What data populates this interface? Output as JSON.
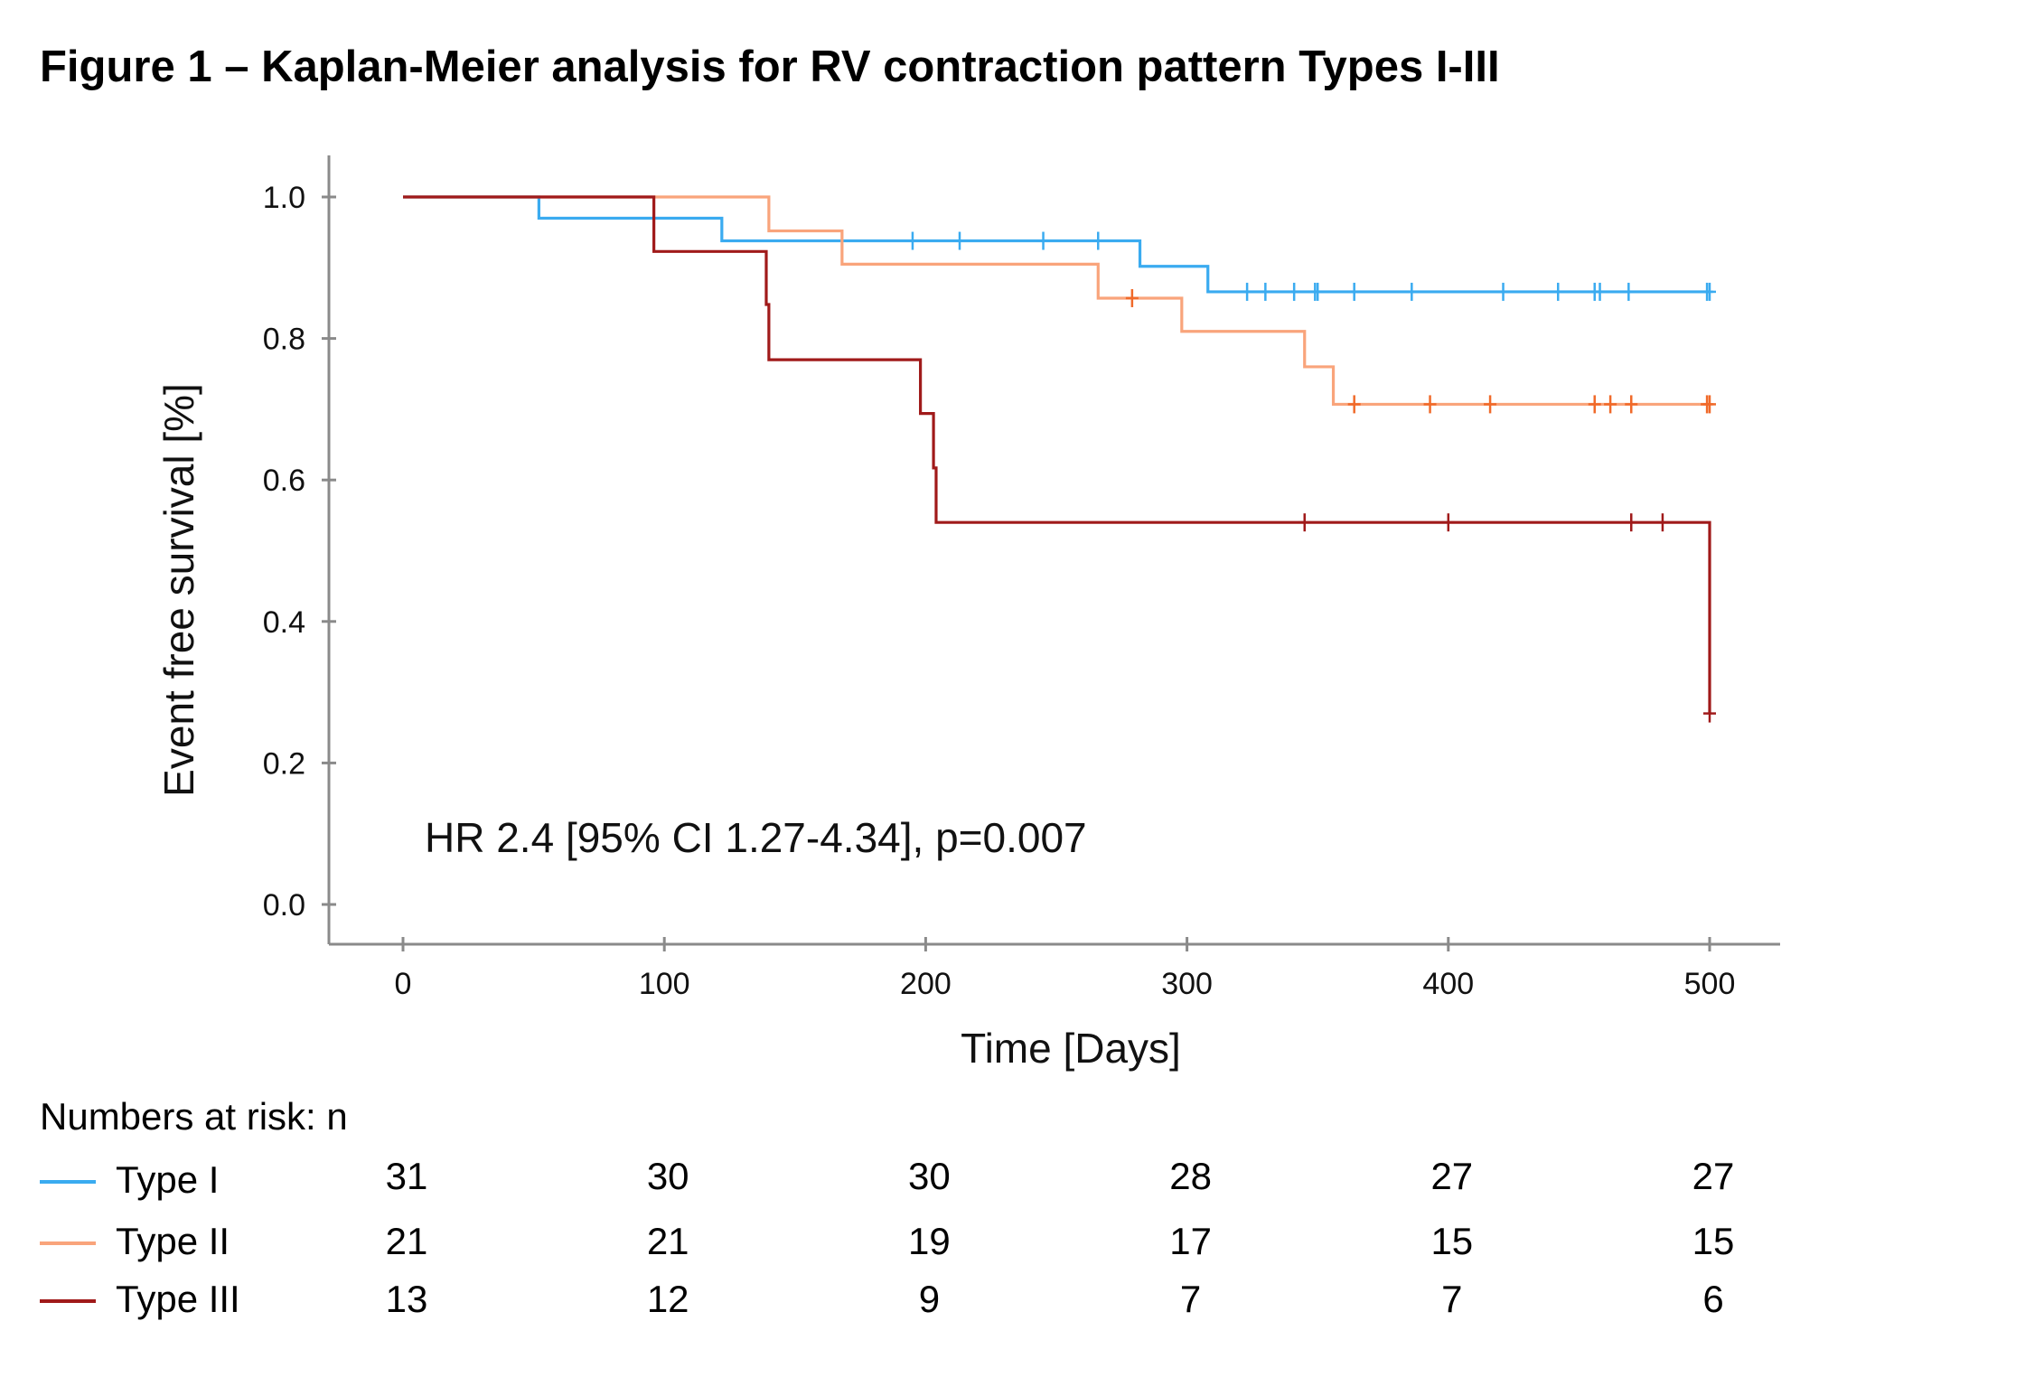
{
  "figure_title": "Figure 1 – Kaplan-Meier analysis for RV contraction pattern Types I-III",
  "chart_data": {
    "type": "line",
    "step": true,
    "xlabel": "Time [Days]",
    "ylabel": "Event free survival [%]",
    "xlim": [
      0,
      500
    ],
    "ylim": [
      0,
      1.0
    ],
    "x_ticks": [
      0,
      100,
      200,
      300,
      400,
      500
    ],
    "y_ticks": [
      0.0,
      0.2,
      0.4,
      0.6,
      0.8,
      1.0
    ],
    "x_tick_labels": [
      "0",
      "100",
      "200",
      "300",
      "400",
      "500"
    ],
    "y_tick_labels": [
      "0.0",
      "0.2",
      "0.4",
      "0.6",
      "0.8",
      "1.0"
    ],
    "grid": false,
    "annotation": "HR 2.4 [95% CI 1.27-4.34], p=0.007",
    "series": [
      {
        "name": "Type I",
        "color": "#3aabf0",
        "steps": [
          [
            0,
            1.0
          ],
          [
            52,
            0.97
          ],
          [
            122,
            0.938
          ],
          [
            282,
            0.902
          ],
          [
            308,
            0.866
          ],
          [
            500,
            0.866
          ]
        ],
        "censored": [
          [
            195,
            0.938
          ],
          [
            213,
            0.938
          ],
          [
            245,
            0.938
          ],
          [
            266,
            0.938
          ],
          [
            323,
            0.866
          ],
          [
            330,
            0.866
          ],
          [
            341,
            0.866
          ],
          [
            349,
            0.866
          ],
          [
            350,
            0.866
          ],
          [
            364,
            0.866
          ],
          [
            386,
            0.866
          ],
          [
            421,
            0.866
          ],
          [
            442,
            0.866
          ],
          [
            456,
            0.866
          ],
          [
            458,
            0.866
          ],
          [
            469,
            0.866
          ],
          [
            499,
            0.866
          ],
          [
            500,
            0.866
          ]
        ]
      },
      {
        "name": "Type II",
        "color": "#f9a47b",
        "censor_color": "#f06a2a",
        "steps": [
          [
            0,
            1.0
          ],
          [
            140,
            0.952
          ],
          [
            168,
            0.905
          ],
          [
            266,
            0.857
          ],
          [
            298,
            0.81
          ],
          [
            345,
            0.76
          ],
          [
            356,
            0.707
          ],
          [
            500,
            0.707
          ]
        ],
        "censored": [
          [
            279,
            0.857
          ],
          [
            364,
            0.707
          ],
          [
            393,
            0.707
          ],
          [
            416,
            0.707
          ],
          [
            456,
            0.707
          ],
          [
            462,
            0.707
          ],
          [
            470,
            0.707
          ],
          [
            499,
            0.707
          ],
          [
            500,
            0.707
          ]
        ]
      },
      {
        "name": "Type III",
        "color": "#a01a1a",
        "steps": [
          [
            0,
            1.0
          ],
          [
            96,
            0.923
          ],
          [
            139,
            0.848
          ],
          [
            140,
            0.77
          ],
          [
            198,
            0.694
          ],
          [
            203,
            0.617
          ],
          [
            204,
            0.54
          ],
          [
            500,
            0.27
          ]
        ],
        "censored": [
          [
            345,
            0.54
          ],
          [
            400,
            0.54
          ],
          [
            470,
            0.54
          ],
          [
            482,
            0.54
          ],
          [
            500,
            0.27
          ]
        ]
      }
    ]
  },
  "risk_table": {
    "heading": "Numbers at risk: n",
    "rows": [
      {
        "label": "Type I",
        "color": "#3aabf0",
        "values": [
          "31",
          "30",
          "30",
          "28",
          "27",
          "27"
        ]
      },
      {
        "label": "Type II",
        "color": "#f9a47b",
        "values": [
          "21",
          "21",
          "19",
          "17",
          "15",
          "15"
        ]
      },
      {
        "label": "Type III",
        "color": "#a01a1a",
        "values": [
          "13",
          "12",
          "9",
          "7",
          "7",
          "6"
        ]
      }
    ]
  }
}
